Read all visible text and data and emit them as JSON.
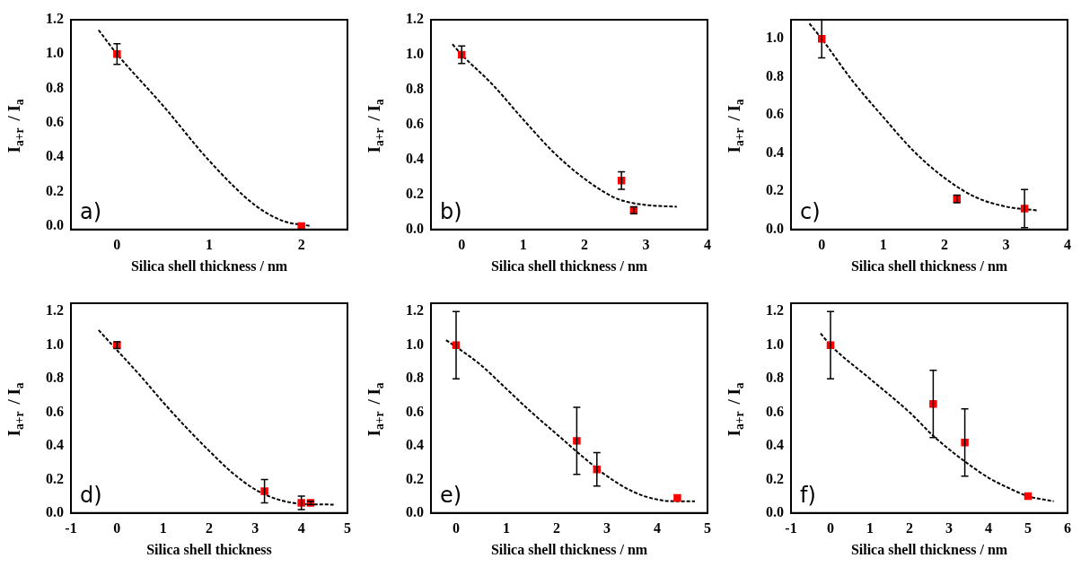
{
  "chart_data": [
    {
      "type": "scatter",
      "xlabel": "Silica shell thickness / nm",
      "ylabel": "I$_{a+r}$ / I$_{a}$",
      "xlim": [
        -0.5,
        2.5
      ],
      "xticks": [
        0,
        1,
        2
      ],
      "ylim": [
        -0.02,
        1.2
      ],
      "yticks": [
        {
          "value": 0,
          "label": "0.0"
        },
        {
          "value": 0.2,
          "label": "0.2"
        },
        {
          "value": 0.4,
          "label": "0.4"
        },
        {
          "value": 0.6,
          "label": "0.6"
        },
        {
          "value": 0.8,
          "label": "0.8"
        },
        {
          "value": 1,
          "label": "1.0"
        },
        {
          "value": 1.2,
          "label": "1.2"
        }
      ],
      "annotations": [
        "a)"
      ],
      "series": [
        {
          "type": "line",
          "color": "#000000",
          "line_style": "dashed",
          "marker": "none",
          "x": [
            -0.2,
            0,
            0.5,
            1,
            1.5,
            1.8,
            2.1
          ],
          "values": [
            1.14,
            1.0,
            0.7,
            0.38,
            0.12,
            0.03,
            0.0
          ]
        },
        {
          "type": "scatter",
          "color": "#ff0000",
          "marker": "square",
          "x": [
            0,
            2
          ],
          "values": [
            1.0,
            0.0
          ],
          "errors": [
            0.06,
            null
          ]
        }
      ]
    },
    {
      "type": "scatter",
      "xlabel": "Silica shell thickness / nm",
      "ylabel": "I$_{a+r}$ / I$_{a}$",
      "xlim": [
        -0.5,
        4
      ],
      "xticks": [
        0,
        1,
        2,
        3,
        4
      ],
      "ylim": [
        0,
        1.2
      ],
      "yticks": [
        {
          "value": 0,
          "label": "0.0"
        },
        {
          "value": 0.2,
          "label": "0.2"
        },
        {
          "value": 0.4,
          "label": "0.4"
        },
        {
          "value": 0.6,
          "label": "0.6"
        },
        {
          "value": 0.8,
          "label": "0.8"
        },
        {
          "value": 1,
          "label": "1.0"
        },
        {
          "value": 1.2,
          "label": "1.2"
        }
      ],
      "annotations": [
        "b)"
      ],
      "series": [
        {
          "type": "line",
          "color": "#000000",
          "line_style": "dashed",
          "marker": "none",
          "x": [
            -0.15,
            0,
            0.5,
            1,
            1.5,
            2,
            2.5,
            2.8,
            3,
            3.5
          ],
          "values": [
            1.06,
            1.0,
            0.83,
            0.63,
            0.44,
            0.29,
            0.18,
            0.15,
            0.14,
            0.13
          ]
        },
        {
          "type": "scatter",
          "color": "#ff0000",
          "marker": "square",
          "x": [
            0,
            2.6,
            2.8
          ],
          "values": [
            1.0,
            0.28,
            0.11
          ],
          "errors": [
            0.05,
            0.05,
            0.02
          ]
        }
      ]
    },
    {
      "type": "scatter",
      "xlabel": "Silica shell thickness / nm",
      "ylabel": "I$_{a+r}$ / I$_{a}$",
      "xlim": [
        -0.5,
        4
      ],
      "xticks": [
        0,
        1,
        2,
        3,
        4
      ],
      "ylim": [
        0,
        1.1
      ],
      "yticks": [
        {
          "value": 0,
          "label": "0.0"
        },
        {
          "value": 0.2,
          "label": "0.2"
        },
        {
          "value": 0.4,
          "label": "0.4"
        },
        {
          "value": 0.6,
          "label": "0.6"
        },
        {
          "value": 0.8,
          "label": "0.8"
        },
        {
          "value": 1,
          "label": "1.0"
        }
      ],
      "annotations": [
        "c)"
      ],
      "series": [
        {
          "type": "line",
          "color": "#000000",
          "line_style": "dashed",
          "marker": "none",
          "x": [
            -0.2,
            0,
            0.5,
            1,
            1.5,
            2,
            2.5,
            3,
            3.5
          ],
          "values": [
            1.08,
            1.0,
            0.78,
            0.59,
            0.41,
            0.27,
            0.17,
            0.12,
            0.1
          ]
        },
        {
          "type": "scatter",
          "color": "#ff0000",
          "marker": "square",
          "x": [
            0,
            2.2,
            3.3
          ],
          "values": [
            1.0,
            0.16,
            0.11
          ],
          "errors": [
            0.1,
            0.02,
            0.1
          ]
        }
      ]
    },
    {
      "type": "scatter",
      "xlabel": "Silica shell thickness",
      "ylabel": "I$_{a+r}$ / I$_{a}$",
      "xlim": [
        -1,
        5
      ],
      "xticks": [
        -1,
        0,
        1,
        2,
        3,
        4,
        5
      ],
      "ylim": [
        0,
        1.25
      ],
      "yticks": [
        {
          "value": 0,
          "label": "0.0"
        },
        {
          "value": 0.2,
          "label": "0.2"
        },
        {
          "value": 0.4,
          "label": "0.4"
        },
        {
          "value": 0.6,
          "label": "0.6"
        },
        {
          "value": 0.8,
          "label": "0.8"
        },
        {
          "value": 1,
          "label": "1.0"
        },
        {
          "value": 1.2,
          "label": "1.2"
        }
      ],
      "annotations": [
        "d)"
      ],
      "series": [
        {
          "type": "line",
          "color": "#000000",
          "line_style": "dashed",
          "marker": "none",
          "x": [
            -0.4,
            0,
            0.5,
            1,
            1.5,
            2,
            2.5,
            3,
            3.5,
            4,
            4.7
          ],
          "values": [
            1.09,
            0.97,
            0.82,
            0.66,
            0.51,
            0.37,
            0.24,
            0.14,
            0.08,
            0.055,
            0.05
          ]
        },
        {
          "type": "scatter",
          "color": "#ff0000",
          "marker": "square",
          "x": [
            0,
            3.2,
            4,
            4.2
          ],
          "values": [
            1.0,
            0.13,
            0.06,
            0.06
          ],
          "errors": [
            0.02,
            0.07,
            0.04,
            0.01
          ]
        }
      ]
    },
    {
      "type": "scatter",
      "xlabel": "Silica shell thickness / nm",
      "ylabel": "I$_{a+r}$ / I$_{a}$",
      "xlim": [
        -0.5,
        5
      ],
      "xticks": [
        0,
        1,
        2,
        3,
        4,
        5
      ],
      "ylim": [
        0,
        1.25
      ],
      "yticks": [
        {
          "value": 0,
          "label": "0.0"
        },
        {
          "value": 0.2,
          "label": "0.2"
        },
        {
          "value": 0.4,
          "label": "0.4"
        },
        {
          "value": 0.6,
          "label": "0.6"
        },
        {
          "value": 0.8,
          "label": "0.8"
        },
        {
          "value": 1,
          "label": "1.0"
        },
        {
          "value": 1.2,
          "label": "1.2"
        }
      ],
      "annotations": [
        "e)"
      ],
      "series": [
        {
          "type": "line",
          "color": "#000000",
          "line_style": "dashed",
          "marker": "none",
          "x": [
            -0.2,
            0,
            0.5,
            1,
            1.5,
            2,
            2.5,
            3,
            3.5,
            4,
            4.4,
            4.75
          ],
          "values": [
            1.03,
            0.99,
            0.88,
            0.74,
            0.6,
            0.47,
            0.34,
            0.22,
            0.13,
            0.08,
            0.07,
            0.07
          ]
        },
        {
          "type": "scatter",
          "color": "#ff0000",
          "marker": "square",
          "x": [
            0,
            2.4,
            2.8,
            4.4
          ],
          "values": [
            1.0,
            0.43,
            0.26,
            0.09
          ],
          "errors": [
            0.2,
            0.2,
            0.1,
            null
          ]
        }
      ]
    },
    {
      "type": "scatter",
      "xlabel": "Silica shell thickness / nm",
      "ylabel": "I$_{a+r}$ / I$_{a}$",
      "xlim": [
        -1,
        6
      ],
      "xticks": [
        -1,
        0,
        1,
        2,
        3,
        4,
        5,
        6
      ],
      "ylim": [
        0,
        1.25
      ],
      "yticks": [
        {
          "value": 0,
          "label": "0.0"
        },
        {
          "value": 0.2,
          "label": "0.2"
        },
        {
          "value": 0.4,
          "label": "0.4"
        },
        {
          "value": 0.6,
          "label": "0.6"
        },
        {
          "value": 0.8,
          "label": "0.8"
        },
        {
          "value": 1,
          "label": "1.0"
        },
        {
          "value": 1.2,
          "label": "1.2"
        }
      ],
      "annotations": [
        "f)"
      ],
      "series": [
        {
          "type": "line",
          "color": "#000000",
          "line_style": "dashed",
          "marker": "none",
          "x": [
            -0.25,
            0,
            1,
            2,
            2.6,
            3,
            3.5,
            4,
            4.5,
            5,
            5.65
          ],
          "values": [
            1.07,
            1.0,
            0.8,
            0.6,
            0.46,
            0.38,
            0.29,
            0.21,
            0.15,
            0.1,
            0.07
          ]
        },
        {
          "type": "scatter",
          "color": "#ff0000",
          "marker": "square",
          "x": [
            0,
            2.6,
            3.4,
            5
          ],
          "values": [
            1.0,
            0.65,
            0.42,
            0.1
          ],
          "errors": [
            0.2,
            0.2,
            0.2,
            null
          ]
        }
      ]
    }
  ]
}
